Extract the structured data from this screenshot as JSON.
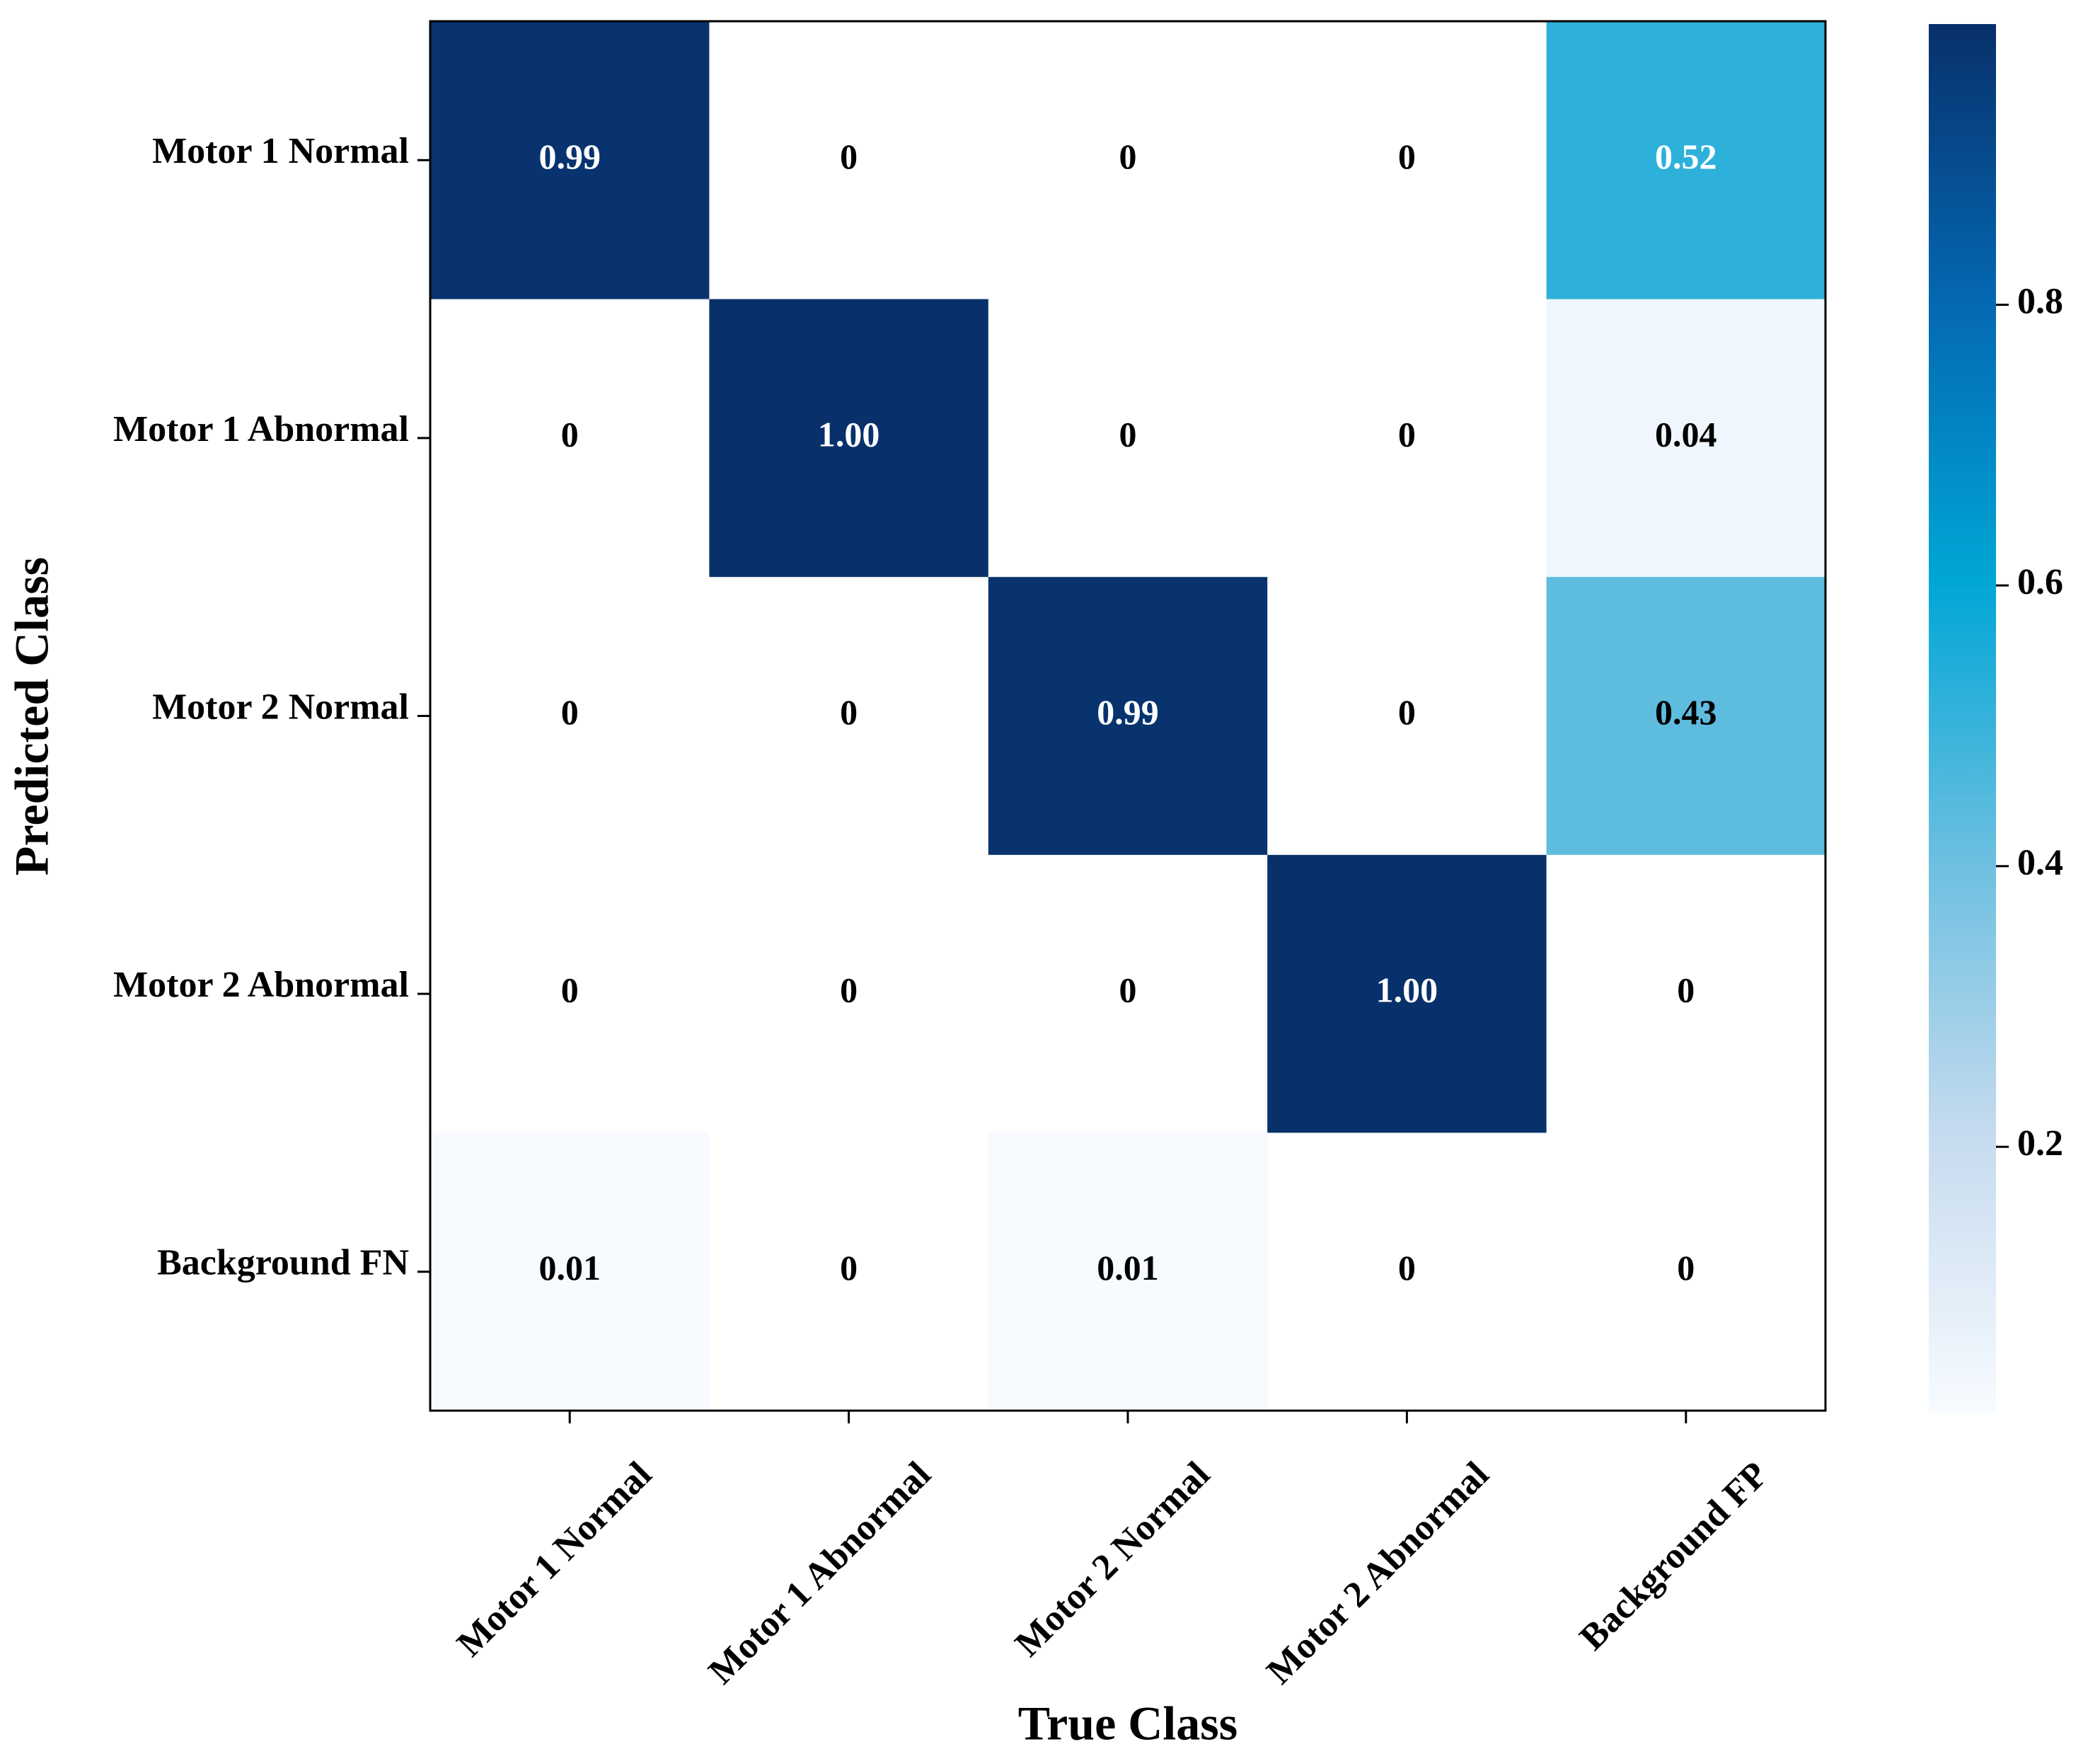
{
  "chart_data": {
    "type": "heatmap",
    "x_label": "True Class",
    "y_label": "Predicted Class",
    "columns": [
      "Motor 1 Normal",
      "Motor 1 Abnormal",
      "Motor 2 Normal",
      "Motor 2 Abnormal",
      "Background FP"
    ],
    "rows": [
      "Motor 1 Normal",
      "Motor 1 Abnormal",
      "Motor 2 Normal",
      "Motor 2 Abnormal",
      "Background FN"
    ],
    "values": [
      [
        0.99,
        0,
        0,
        0,
        0.52
      ],
      [
        0,
        1,
        0,
        0,
        0.04
      ],
      [
        0,
        0,
        0.99,
        0,
        0.43
      ],
      [
        0,
        0,
        0,
        1,
        0
      ],
      [
        0.01,
        0,
        0.01,
        0,
        0
      ]
    ],
    "value_labels": [
      [
        "0.99",
        "0",
        "0",
        "0",
        "0.52"
      ],
      [
        "0",
        "1.00",
        "0",
        "0",
        "0.04"
      ],
      [
        "0",
        "0",
        "0.99",
        "0",
        "0.43"
      ],
      [
        "0",
        "0",
        "0",
        "1.00",
        "0"
      ],
      [
        "0.01",
        "0",
        "0.01",
        "0",
        "0"
      ]
    ],
    "clim": [
      0.01,
      1
    ],
    "cticks": [
      0.2,
      0.4,
      0.6,
      0.8
    ],
    "colorscale": [
      "#f7fbff",
      "#c6dbef",
      "#6bbfe0",
      "#00a6d6",
      "#0468b2",
      "#08306b"
    ],
    "mask_color": "#ffffff"
  }
}
